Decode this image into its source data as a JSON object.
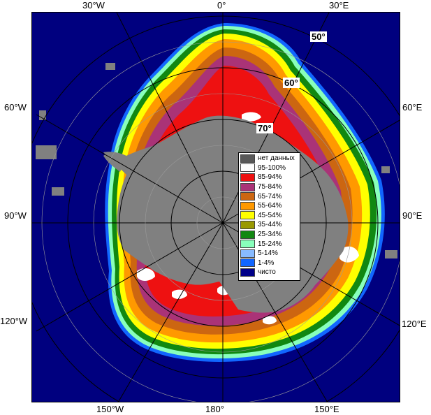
{
  "map": {
    "background_color": "#00007f",
    "land_color": "#808080",
    "grid_color": "#9a9a9a",
    "circle_color": "#000000"
  },
  "longitude_labels": {
    "top_30w": "30°W",
    "top_0": "0°",
    "top_30e": "30°E",
    "left_60w": "60°W",
    "right_60e": "60°E",
    "left_90w": "90°W",
    "right_90e": "90°E",
    "left_120w": "120°W",
    "right_120e": "120°E",
    "bottom_150w": "150°W",
    "bottom_180": "180°",
    "bottom_150e": "150°E"
  },
  "latitude_labels": {
    "lat_50": "50°",
    "lat_60": "60°",
    "lat_70": "70°"
  },
  "legend": {
    "items": [
      {
        "label": "нет данных",
        "color": "#595959"
      },
      {
        "label": "95-100%",
        "color": "#ffffff"
      },
      {
        "label": "85-94%",
        "color": "#ee1111"
      },
      {
        "label": "75-84%",
        "color": "#aa3377"
      },
      {
        "label": "65-74%",
        "color": "#cc6611"
      },
      {
        "label": "55-64%",
        "color": "#ff9900"
      },
      {
        "label": "45-54%",
        "color": "#ffff00"
      },
      {
        "label": "35-44%",
        "color": "#999900"
      },
      {
        "label": "25-34%",
        "color": "#118811"
      },
      {
        "label": "15-24%",
        "color": "#88ffbb"
      },
      {
        "label": "5-14%",
        "color": "#88bbff"
      },
      {
        "label": "1-4%",
        "color": "#1166ff"
      },
      {
        "label": "чисто",
        "color": "#000088"
      }
    ]
  }
}
